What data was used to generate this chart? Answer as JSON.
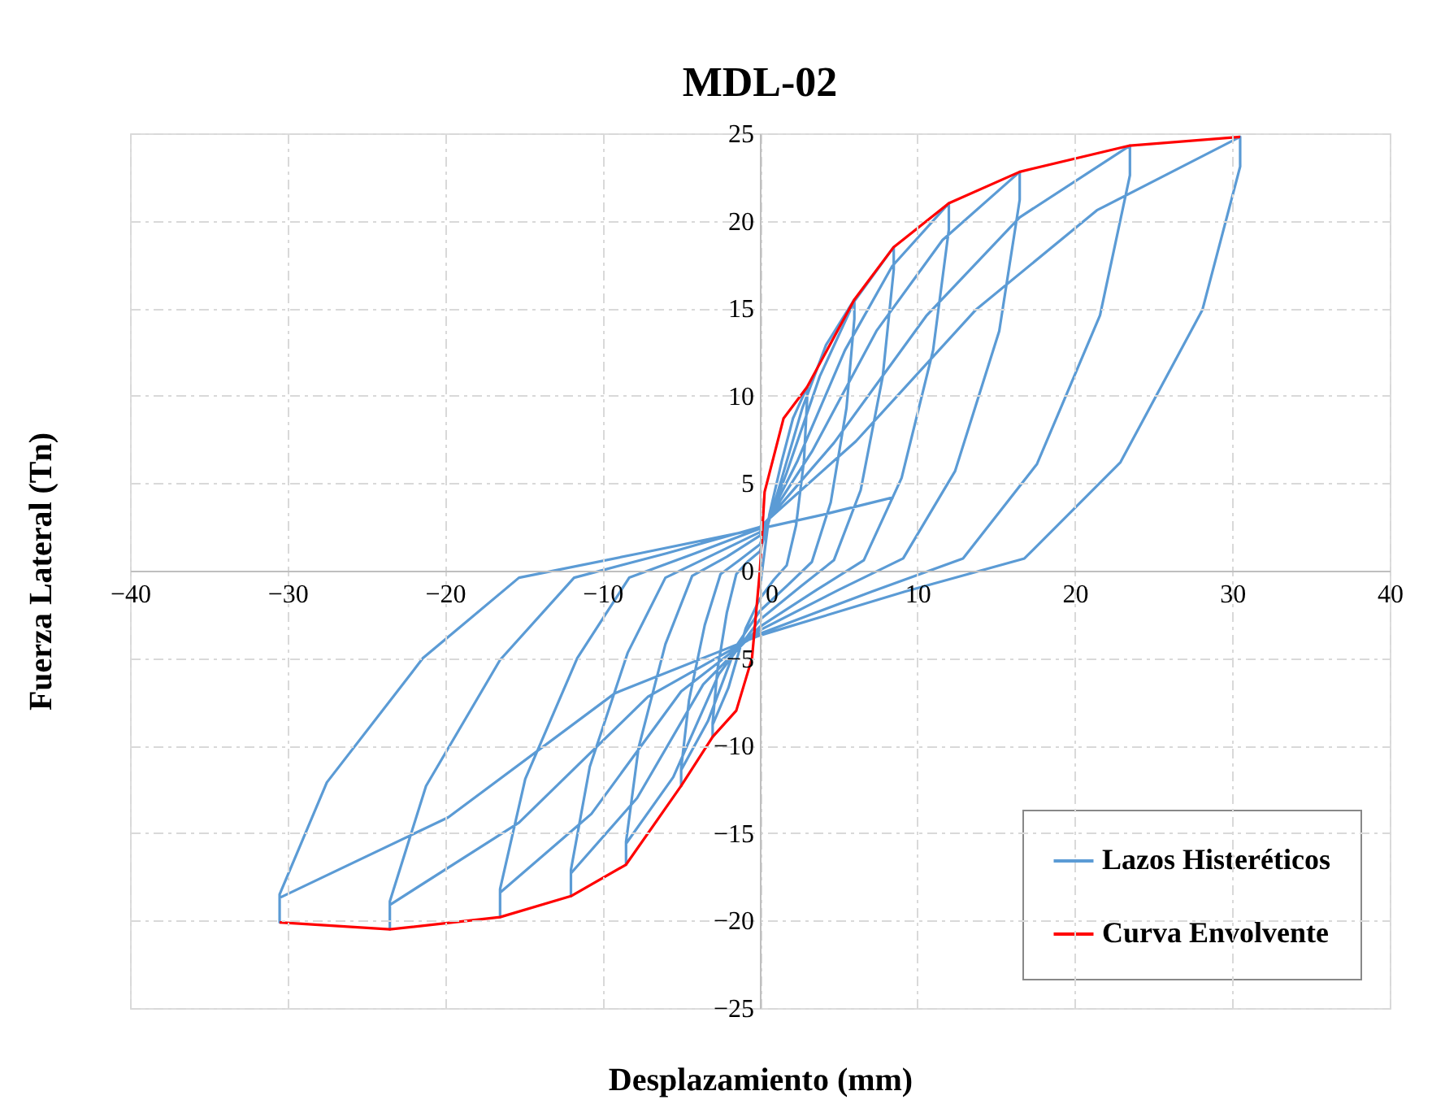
{
  "chart_data": {
    "type": "line",
    "title": "MDL-02",
    "xlabel": "Desplazamiento (mm)",
    "ylabel": "Fuerza Lateral (Tn)",
    "xlim": [
      -40,
      40
    ],
    "xticks": [
      -40,
      -30,
      -20,
      -10,
      0,
      10,
      20,
      30,
      40
    ],
    "ylim": [
      -25,
      25
    ],
    "yticks": [
      -25,
      -20,
      -15,
      -10,
      -5,
      0,
      5,
      10,
      15,
      20,
      25
    ],
    "grid": true,
    "legend": "bottom right",
    "marker": "none",
    "line_style": "solid",
    "series": [
      {
        "name": "Lazos Histeréticos",
        "color": "#5b9bd5",
        "x": [
          0,
          0.6,
          1.4,
          2.1,
          3,
          3,
          2.8,
          2.3,
          1.7,
          0.9,
          0,
          -0.9,
          -2,
          -3,
          -3,
          -3,
          -2.7,
          -2.1,
          -1.5,
          -0.8,
          0,
          1.2,
          2.7,
          4.2,
          6,
          6,
          5.5,
          4.5,
          3.3,
          1.8,
          0,
          -1.5,
          -3.3,
          -5,
          -5,
          -5,
          -4.5,
          -3.5,
          -2.5,
          -1.3,
          0,
          1.7,
          3.8,
          6,
          8.5,
          8.5,
          7.8,
          6.4,
          4.7,
          2.6,
          0,
          -2.6,
          -5.5,
          -8.5,
          -8.5,
          -8.5,
          -7.7,
          -6,
          -4.3,
          -2.1,
          0,
          2.4,
          5.4,
          8.4,
          12,
          12,
          11,
          9,
          6.6,
          3.6,
          0,
          -3.6,
          -7.8,
          -12,
          -12,
          -12,
          -10.8,
          -8.4,
          -6,
          -3,
          0,
          3.3,
          7.4,
          11.6,
          16.5,
          16.5,
          15.2,
          12.4,
          9.1,
          5,
          0,
          -5,
          -10.7,
          -16.5,
          -16.5,
          -16.5,
          -14.9,
          -11.6,
          -8.3,
          -4.1,
          0,
          4.7,
          10.6,
          16.5,
          23.5,
          23.5,
          21.6,
          17.6,
          12.9,
          7.1,
          0,
          -7.1,
          -15.3,
          -23.5,
          -23.5,
          -23.5,
          -21.2,
          -16.5,
          -11.8,
          -5.9,
          0,
          6.1,
          13.7,
          21.4,
          30.5,
          30.5,
          28.1,
          22.9,
          16.8,
          9.2,
          0,
          -9.2,
          -19.8,
          -30.5,
          -30.5,
          -30.5,
          -27.5,
          -21.4,
          -15.3,
          -7.6,
          0,
          4,
          8.5
        ],
        "values": [
          -1,
          3.2,
          6.3,
          8.7,
          10.5,
          9.8,
          6.3,
          2.6,
          0.3,
          -0.5,
          -1.6,
          -3.3,
          -6.7,
          -8.8,
          -9.5,
          -8.7,
          -5.7,
          -2.4,
          -0.2,
          0.5,
          1.1,
          4.7,
          9.3,
          12.9,
          15.5,
          14.4,
          9.3,
          3.9,
          0.5,
          -0.8,
          -2.3,
          -4.3,
          -8.6,
          -11.4,
          -12.3,
          -11.3,
          -7.4,
          -3.1,
          -0.2,
          0.6,
          1.5,
          5.6,
          11.1,
          15.4,
          18.5,
          17.2,
          11.1,
          4.6,
          0.6,
          -0.9,
          -2.8,
          -5.9,
          -11.8,
          -15.6,
          -16.8,
          -15.5,
          -10.1,
          -4.2,
          -0.3,
          0.8,
          2,
          6.3,
          12.6,
          17.4,
          21,
          19.5,
          12.6,
          5.3,
          0.6,
          -1.1,
          -3.2,
          -6.5,
          -13,
          -17.3,
          -18.6,
          -17.1,
          -11.2,
          -4.7,
          -0.4,
          0.9,
          2.2,
          6.8,
          13.7,
          18.9,
          22.8,
          21.2,
          13.7,
          5.7,
          0.7,
          -1.1,
          -3.4,
          -6.9,
          -13.9,
          -18.4,
          -19.8,
          -18.2,
          -11.9,
          -5,
          -0.4,
          1,
          2.4,
          7.3,
          14.6,
          20.2,
          24.3,
          22.6,
          14.6,
          6.1,
          0.7,
          -1.2,
          -3.6,
          -7.2,
          -14.4,
          -19.1,
          -20.5,
          -18.9,
          -12.3,
          -5.1,
          -0.4,
          1,
          2.5,
          7.4,
          14.9,
          20.6,
          24.8,
          23.1,
          14.9,
          6.2,
          0.7,
          -1.2,
          -3.7,
          -7,
          -14.1,
          -18.7,
          -20.1,
          -18.5,
          -12.1,
          -5,
          -0.4,
          1,
          2.4,
          3.2,
          4.2
        ]
      },
      {
        "name": "Curva Envolvente",
        "color": "#ff0000",
        "x": [
          -30.5,
          -23.5,
          -16.5,
          -12,
          -8.5,
          -5,
          -3,
          -1.5,
          -0.5,
          0,
          0.3,
          1.5,
          3,
          6,
          8.5,
          12,
          16.5,
          23.5,
          30.5
        ],
        "values": [
          -20.1,
          -20.5,
          -19.8,
          -18.6,
          -16.8,
          -12.3,
          -9.5,
          -8,
          -5,
          0,
          4.5,
          8.7,
          10.5,
          15.5,
          18.5,
          21,
          22.8,
          24.3,
          24.8
        ]
      }
    ]
  }
}
